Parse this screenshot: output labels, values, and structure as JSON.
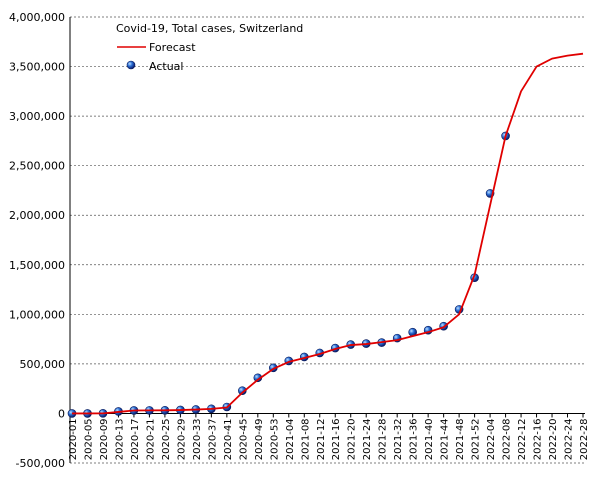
{
  "chart_data": {
    "type": "line",
    "title": "Covid-19, Total cases, Switzerland",
    "categories": [
      "2020-01",
      "2020-05",
      "2020-09",
      "2020-13",
      "2020-17",
      "2020-21",
      "2020-25",
      "2020-29",
      "2020-33",
      "2020-37",
      "2020-41",
      "2020-45",
      "2020-49",
      "2020-53",
      "2021-04",
      "2021-08",
      "2021-12",
      "2021-16",
      "2021-20",
      "2021-24",
      "2021-28",
      "2021-32",
      "2021-36",
      "2021-40",
      "2021-44",
      "2021-48",
      "2021-52",
      "2022-04",
      "2022-08",
      "2022-12",
      "2022-16",
      "2022-20",
      "2022-24",
      "2022-28"
    ],
    "series": [
      {
        "name": "Forecast",
        "color": "#e00000",
        "marker": "line",
        "values": [
          0,
          0,
          1000,
          15000,
          30000,
          31000,
          31500,
          34000,
          39000,
          46000,
          60000,
          210000,
          340000,
          450000,
          520000,
          560000,
          600000,
          650000,
          690000,
          700000,
          720000,
          740000,
          780000,
          820000,
          870000,
          1000000,
          1400000,
          2100000,
          2800000,
          3250000,
          3500000,
          3580000,
          3610000,
          3630000
        ]
      },
      {
        "name": "Actual",
        "color": "#2a6fd6",
        "marker": "dot",
        "values": [
          0,
          0,
          1000,
          20000,
          30000,
          31000,
          32000,
          35000,
          40000,
          47000,
          65000,
          230000,
          360000,
          460000,
          530000,
          570000,
          610000,
          660000,
          695000,
          705000,
          715000,
          760000,
          820000,
          840000,
          880000,
          1050000,
          1370000,
          2220000,
          2800000,
          null,
          null,
          null,
          null,
          null
        ]
      }
    ],
    "ylim": [
      -500000,
      4000000
    ],
    "yticks": [
      {
        "value": -500000,
        "label": "-500,000"
      },
      0,
      {
        "value": 500000,
        "label": "500,000"
      },
      {
        "value": 1000000,
        "label": "1,000,000"
      },
      {
        "value": 1500000,
        "label": "1,500,000"
      },
      {
        "value": 2000000,
        "label": "2,000,000"
      },
      {
        "value": 2500000,
        "label": "2,500,000"
      },
      {
        "value": 3000000,
        "label": "3,000,000"
      },
      {
        "value": 3500000,
        "label": "3,500,000"
      },
      {
        "value": 4000000,
        "label": "4,000,000"
      }
    ],
    "grid": true,
    "legend": "top-left"
  }
}
